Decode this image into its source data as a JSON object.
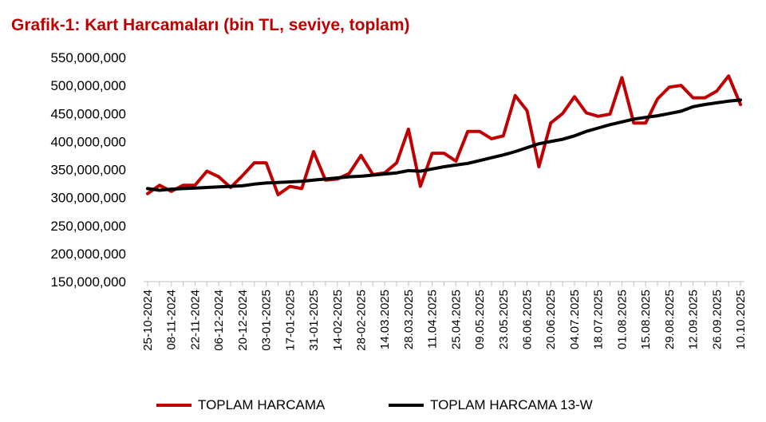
{
  "chart_data": {
    "type": "line",
    "title": "Grafik-1: Kart Harcamaları (bin TL, seviye, toplam)",
    "xlabel": "",
    "ylabel": "",
    "ylim": [
      150000000,
      550000000
    ],
    "y_ticks": [
      "550,000,000",
      "500,000,000",
      "450,000,000",
      "400,000,000",
      "350,000,000",
      "300,000,000",
      "250,000,000",
      "200,000,000",
      "150,000,000"
    ],
    "y_tick_values": [
      550000000,
      500000000,
      450000000,
      400000000,
      350000000,
      300000000,
      250000000,
      200000000,
      150000000
    ],
    "x": [
      "25-10-2024",
      "01-11-2024",
      "08-11-2024",
      "15-11-2024",
      "22-11-2024",
      "29-11-2024",
      "06-12-2024",
      "13-12-2024",
      "20-12-2024",
      "27-12-2024",
      "03-01-2025",
      "10-01-2025",
      "17-01-2025",
      "24-01-2025",
      "31-01-2025",
      "07-02-2025",
      "14-02-2025",
      "21-02-2025",
      "28-02-2025",
      "07-03-2025",
      "14.03.2025",
      "21.03.2025",
      "28.03.2025",
      "04.04.2025",
      "11.04.2025",
      "18.04.2025",
      "25.04.2025",
      "02.05.2025",
      "09.05.2025",
      "16.05.2025",
      "23.05.2025",
      "30.05.2025",
      "06.06.2025",
      "13.06.2025",
      "20.06.2025",
      "27.06.2025",
      "04.07.2025",
      "11.07.2025",
      "18.07.2025",
      "25.07.2025",
      "01.08.2025",
      "08.08.2025",
      "15.08.2025",
      "22.08.2025",
      "29.08.2025",
      "05.09.2025",
      "12.09.2025",
      "19.09.2025",
      "26.09.2025",
      "03.10.2025",
      "10.10.2025"
    ],
    "x_tick_labels": [
      "25-10-2024",
      "08-11-2024",
      "22-11-2024",
      "06-12-2024",
      "20-12-2024",
      "03-01-2025",
      "17-01-2025",
      "31-01-2025",
      "14-02-2025",
      "28-02-2025",
      "14.03.2025",
      "28.03.2025",
      "11.04.2025",
      "25.04.2025",
      "09.05.2025",
      "23.05.2025",
      "06.06.2025",
      "20.06.2025",
      "04.07.2025",
      "18.07.2025",
      "01.08.2025",
      "15.08.2025",
      "29.08.2025",
      "12.09.2025",
      "26.09.2025",
      "10.10.2025"
    ],
    "series": [
      {
        "name": "TOPLAM HARCAMA",
        "color": "#c00000",
        "values": [
          307000000,
          322000000,
          311000000,
          322000000,
          322000000,
          347000000,
          337000000,
          318000000,
          339000000,
          362000000,
          362000000,
          305000000,
          320000000,
          316000000,
          382000000,
          331000000,
          333000000,
          343000000,
          375000000,
          341000000,
          344000000,
          362000000,
          422000000,
          320000000,
          379000000,
          379000000,
          365000000,
          418000000,
          418000000,
          405000000,
          410000000,
          482000000,
          455000000,
          355000000,
          433000000,
          450000000,
          480000000,
          451000000,
          445000000,
          449000000,
          514000000,
          433000000,
          433000000,
          476000000,
          497000000,
          500000000,
          478000000,
          478000000,
          490000000,
          517000000,
          466000000
        ]
      },
      {
        "name": "TOPLAM HARCAMA 13-W",
        "color": "#000000",
        "values": [
          316000000,
          313000000,
          315000000,
          316000000,
          317000000,
          318000000,
          319000000,
          320000000,
          321000000,
          324000000,
          326000000,
          327000000,
          328000000,
          329000000,
          331000000,
          333000000,
          335000000,
          337000000,
          338000000,
          340000000,
          342000000,
          344000000,
          348000000,
          347000000,
          351000000,
          355000000,
          358000000,
          361000000,
          366000000,
          371000000,
          376000000,
          382000000,
          389000000,
          396000000,
          400000000,
          404000000,
          410000000,
          418000000,
          424000000,
          430000000,
          435000000,
          440000000,
          443000000,
          446000000,
          450000000,
          454000000,
          462000000,
          466000000,
          469000000,
          472000000,
          474000000
        ]
      }
    ],
    "legend_position": "bottom",
    "grid": false
  }
}
